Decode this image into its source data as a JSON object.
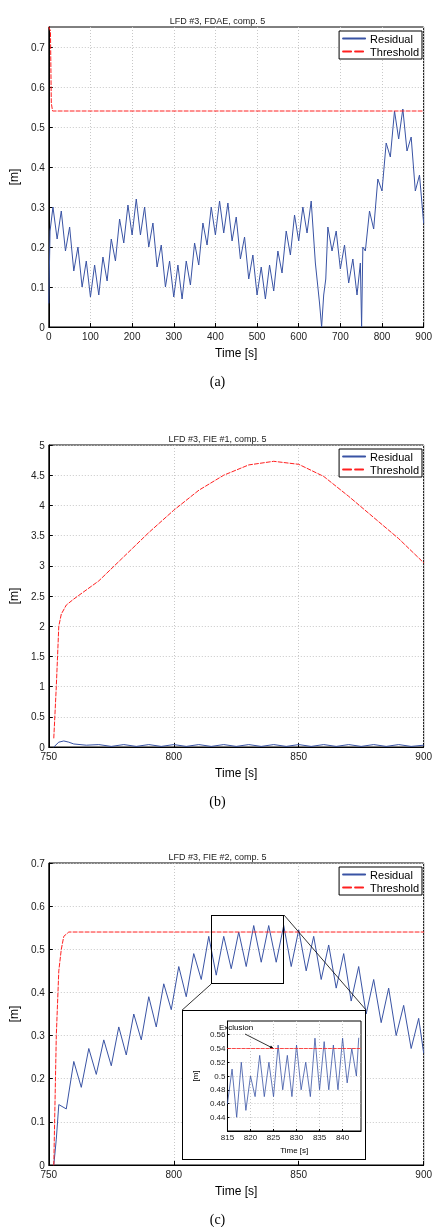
{
  "chart_data": [
    {
      "type": "line",
      "title": "LFD #3, FDAE, comp. 5",
      "xlabel": "Time [s]",
      "ylabel": "[m]",
      "xlim": [
        0,
        900
      ],
      "xticks": [
        0,
        100,
        200,
        300,
        400,
        500,
        600,
        700,
        800,
        900
      ],
      "ylim": [
        0,
        0.75
      ],
      "yticks": [
        0,
        0.1,
        0.2,
        0.3,
        0.4,
        0.5,
        0.6,
        0.7
      ],
      "grid": true,
      "legend": "top right",
      "marker": "none",
      "annotations": [
        "(a)"
      ],
      "series": [
        {
          "name": "Residual",
          "color": "#3953a4",
          "line_style": "solid",
          "x": [
            0,
            3,
            10,
            20,
            30,
            40,
            50,
            60,
            70,
            80,
            90,
            100,
            110,
            120,
            130,
            140,
            150,
            160,
            170,
            180,
            190,
            200,
            210,
            220,
            230,
            240,
            250,
            260,
            270,
            280,
            290,
            300,
            310,
            320,
            330,
            340,
            350,
            360,
            370,
            380,
            390,
            400,
            410,
            420,
            430,
            440,
            450,
            460,
            470,
            480,
            490,
            500,
            510,
            520,
            530,
            540,
            550,
            560,
            570,
            580,
            590,
            600,
            610,
            620,
            630,
            640,
            650,
            655,
            660,
            665,
            670,
            680,
            690,
            700,
            710,
            720,
            730,
            740,
            748,
            751,
            754,
            760,
            770,
            780,
            790,
            800,
            810,
            820,
            830,
            840,
            850,
            860,
            870,
            880,
            890,
            900
          ],
          "values": [
            0.06,
            0.24,
            0.3,
            0.22,
            0.29,
            0.19,
            0.25,
            0.14,
            0.2,
            0.1,
            0.165,
            0.075,
            0.155,
            0.08,
            0.175,
            0.115,
            0.22,
            0.165,
            0.27,
            0.21,
            0.305,
            0.23,
            0.32,
            0.23,
            0.3,
            0.2,
            0.26,
            0.15,
            0.205,
            0.1,
            0.165,
            0.075,
            0.155,
            0.07,
            0.165,
            0.105,
            0.21,
            0.155,
            0.26,
            0.205,
            0.3,
            0.23,
            0.315,
            0.235,
            0.31,
            0.215,
            0.275,
            0.17,
            0.225,
            0.12,
            0.18,
            0.08,
            0.15,
            0.07,
            0.155,
            0.09,
            0.19,
            0.135,
            0.24,
            0.18,
            0.28,
            0.215,
            0.3,
            0.235,
            0.315,
            0.16,
            0.06,
            0.0,
            0.08,
            0.12,
            0.25,
            0.19,
            0.24,
            0.145,
            0.205,
            0.11,
            0.17,
            0.08,
            0.16,
            0.0,
            0.2,
            0.19,
            0.29,
            0.245,
            0.37,
            0.34,
            0.46,
            0.425,
            0.54,
            0.47,
            0.545,
            0.44,
            0.475,
            0.34,
            0.38,
            0.26
          ]
        },
        {
          "name": "Threshold",
          "color": "#ff2020",
          "line_style": "dashed",
          "x": [
            0,
            4,
            6,
            9,
            900
          ],
          "values": [
            0.75,
            0.74,
            0.56,
            0.54,
            0.54
          ]
        }
      ]
    },
    {
      "type": "line",
      "title": "LFD #3, FIE #1, comp. 5",
      "xlabel": "Time [s]",
      "ylabel": "[m]",
      "xlim": [
        750,
        900
      ],
      "xticks": [
        750,
        800,
        850,
        900
      ],
      "ylim": [
        0,
        5
      ],
      "yticks": [
        0,
        0.5,
        1,
        1.5,
        2,
        2.5,
        3,
        3.5,
        4,
        4.5,
        5
      ],
      "grid": true,
      "legend": "top right",
      "marker": "none",
      "annotations": [
        "(b)"
      ],
      "series": [
        {
          "name": "Residual",
          "color": "#3953a4",
          "line_style": "solid",
          "x": [
            752,
            754,
            756,
            758,
            760,
            765,
            770,
            775,
            780,
            785,
            790,
            795,
            800,
            805,
            810,
            815,
            820,
            825,
            830,
            835,
            840,
            845,
            850,
            855,
            860,
            865,
            870,
            875,
            880,
            885,
            890,
            895,
            900
          ],
          "values": [
            0,
            0.08,
            0.1,
            0.08,
            0.05,
            0.03,
            0.04,
            0.01,
            0.04,
            0.01,
            0.04,
            0.01,
            0.04,
            0.01,
            0.04,
            0.01,
            0.04,
            0.01,
            0.04,
            0.01,
            0.04,
            0.01,
            0.04,
            0.01,
            0.04,
            0.01,
            0.04,
            0.01,
            0.04,
            0.01,
            0.04,
            0.01,
            0.03
          ]
        },
        {
          "name": "Threshold",
          "color": "#ff2020",
          "line_style": "dashed",
          "x": [
            752,
            753,
            754,
            755,
            757,
            760,
            770,
            780,
            790,
            800,
            810,
            820,
            830,
            840,
            850,
            860,
            870,
            880,
            890,
            900
          ],
          "values": [
            0.15,
            1.0,
            2.0,
            2.2,
            2.35,
            2.45,
            2.75,
            3.15,
            3.55,
            3.92,
            4.25,
            4.5,
            4.67,
            4.73,
            4.68,
            4.48,
            4.15,
            3.8,
            3.45,
            3.05
          ]
        }
      ]
    },
    {
      "type": "line",
      "title": "LFD #3, FIE #2, comp. 5",
      "xlabel": "Time [s]",
      "ylabel": "[m]",
      "xlim": [
        750,
        900
      ],
      "xticks": [
        750,
        800,
        850,
        900
      ],
      "ylim": [
        0,
        0.7
      ],
      "yticks": [
        0,
        0.1,
        0.2,
        0.3,
        0.4,
        0.5,
        0.6,
        0.7
      ],
      "grid": true,
      "legend": "top right",
      "marker": "none",
      "annotations": [
        "(c)"
      ],
      "series": [
        {
          "name": "Residual",
          "color": "#3953a4",
          "line_style": "solid",
          "x": [
            752,
            753,
            754,
            757,
            760,
            763,
            766,
            769,
            772,
            775,
            778,
            781,
            784,
            787,
            790,
            793,
            796,
            799,
            802,
            805,
            808,
            811,
            814,
            817,
            820,
            823,
            826,
            829,
            832,
            835,
            838,
            841,
            844,
            847,
            850,
            853,
            856,
            859,
            862,
            865,
            868,
            871,
            874,
            877,
            880,
            883,
            886,
            889,
            892,
            895,
            898,
            900
          ],
          "values": [
            0,
            0.06,
            0.14,
            0.13,
            0.24,
            0.18,
            0.27,
            0.21,
            0.29,
            0.23,
            0.32,
            0.255,
            0.35,
            0.29,
            0.39,
            0.32,
            0.42,
            0.36,
            0.46,
            0.39,
            0.49,
            0.43,
            0.53,
            0.44,
            0.53,
            0.455,
            0.54,
            0.46,
            0.555,
            0.47,
            0.555,
            0.47,
            0.555,
            0.46,
            0.545,
            0.45,
            0.53,
            0.43,
            0.51,
            0.41,
            0.49,
            0.38,
            0.46,
            0.35,
            0.43,
            0.33,
            0.41,
            0.3,
            0.37,
            0.27,
            0.34,
            0.26
          ]
        },
        {
          "name": "Threshold",
          "color": "#ff2020",
          "line_style": "dashed",
          "x": [
            752,
            753,
            754,
            755,
            756,
            758,
            900
          ],
          "values": [
            0,
            0.3,
            0.45,
            0.5,
            0.53,
            0.54,
            0.54
          ]
        }
      ]
    },
    {
      "type": "line",
      "xlabel": "Time [s]",
      "ylabel": "[m]",
      "xlim": [
        815,
        844
      ],
      "xticks": [
        815,
        820,
        825,
        830,
        835,
        840
      ],
      "ylim": [
        0.42,
        0.58
      ],
      "yticks": [
        0.44,
        0.46,
        0.48,
        0.5,
        0.52,
        0.54,
        0.56
      ],
      "grid": true,
      "marker": "none",
      "annotations": [
        {
          "text": "Exclusion",
          "x": 825,
          "y": 0.54
        }
      ],
      "series": [
        {
          "color": "#3953a4",
          "line_style": "solid",
          "x": [
            815,
            816,
            817,
            818,
            819,
            820,
            821,
            822,
            823,
            824,
            825,
            826,
            827,
            828,
            829,
            830,
            831,
            832,
            833,
            834,
            835,
            836,
            837,
            838,
            839,
            840,
            841,
            842,
            843,
            843.5
          ],
          "values": [
            0.46,
            0.51,
            0.44,
            0.52,
            0.45,
            0.5,
            0.47,
            0.53,
            0.47,
            0.52,
            0.47,
            0.545,
            0.48,
            0.53,
            0.47,
            0.545,
            0.48,
            0.52,
            0.47,
            0.555,
            0.48,
            0.55,
            0.48,
            0.545,
            0.48,
            0.555,
            0.49,
            0.54,
            0.5,
            0.555
          ]
        },
        {
          "color": "#ff2020",
          "line_style": "dashed",
          "x": [
            815,
            844
          ],
          "values": [
            0.54,
            0.54
          ]
        }
      ]
    }
  ]
}
